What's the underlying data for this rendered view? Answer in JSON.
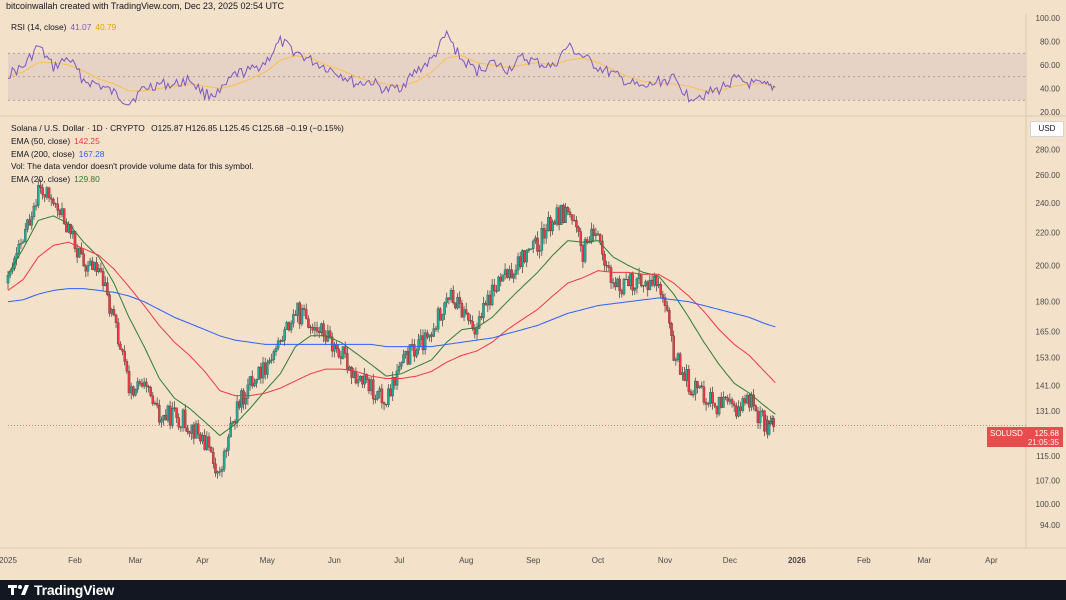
{
  "header": {
    "attribution": "bitcoinwallah created with TradingView.com, Dec 23, 2025 02:54 UTC"
  },
  "footer": {
    "brand": "TradingView"
  },
  "rsi_legend": {
    "label": "RSI (14, close)",
    "rsi_value": "41.07",
    "ma_value": "40.79"
  },
  "legend": {
    "symbol_line": "Solana / U.S. Dollar · 1D · CRYPTO",
    "ohlc": "O125.87 H126.85 L125.45 C125.68 −0.19 (−0.15%)",
    "ema50_label": "EMA (50, close)",
    "ema50_value": "142.25",
    "ema200_label": "EMA (200, close)",
    "ema200_value": "167.28",
    "vol_note": "Vol: The data vendor doesn't provide volume data for this symbol.",
    "ema20_label": "EMA (20, close)",
    "ema20_value": "129.80"
  },
  "currency_button": "USD",
  "price_tag": {
    "symbol": "SOLUSD",
    "price": "125.68",
    "countdown": "21:05:35"
  },
  "colors": {
    "up": "#22ab94",
    "down": "#f23645",
    "ema50": "#f23645",
    "ema200": "#2962ff",
    "ema20": "#2e7d32",
    "rsi": "#7e57c2",
    "rsi_ma": "#f9c14a",
    "rsi_band": "#e2d0c4",
    "background": "#f3e1c9"
  },
  "chart_data": [
    {
      "type": "line",
      "title": "RSI (14, close)",
      "y_ticks": [
        "100.00",
        "80.00",
        "60.00",
        "40.00",
        "20.00"
      ],
      "ylim": [
        20,
        100
      ],
      "band": [
        30,
        70
      ],
      "midline": 50,
      "x": [
        "2025-01-01",
        "2025-01-08",
        "2025-01-15",
        "2025-01-22",
        "2025-01-29",
        "2025-02-05",
        "2025-02-12",
        "2025-02-19",
        "2025-02-26",
        "2025-03-05",
        "2025-03-12",
        "2025-03-19",
        "2025-03-26",
        "2025-04-02",
        "2025-04-09",
        "2025-04-16",
        "2025-04-23",
        "2025-04-30",
        "2025-05-07",
        "2025-05-14",
        "2025-05-21",
        "2025-05-28",
        "2025-06-04",
        "2025-06-11",
        "2025-06-18",
        "2025-06-25",
        "2025-07-02",
        "2025-07-09",
        "2025-07-16",
        "2025-07-23",
        "2025-07-30",
        "2025-08-06",
        "2025-08-13",
        "2025-08-20",
        "2025-08-27",
        "2025-09-03",
        "2025-09-10",
        "2025-09-17",
        "2025-09-24",
        "2025-10-01",
        "2025-10-08",
        "2025-10-15",
        "2025-10-22",
        "2025-10-29",
        "2025-11-05",
        "2025-11-12",
        "2025-11-19",
        "2025-11-26",
        "2025-12-03",
        "2025-12-10",
        "2025-12-17",
        "2025-12-22"
      ],
      "series": [
        {
          "name": "RSI",
          "values": [
            52,
            58,
            76,
            58,
            66,
            47,
            43,
            36,
            28,
            40,
            44,
            43,
            48,
            35,
            36,
            52,
            55,
            62,
            80,
            71,
            64,
            58,
            52,
            44,
            46,
            38,
            42,
            55,
            64,
            86,
            64,
            55,
            62,
            56,
            66,
            62,
            58,
            76,
            67,
            58,
            52,
            45,
            40,
            46,
            48,
            33,
            35,
            39,
            48,
            44,
            42,
            41
          ]
        },
        {
          "name": "MA",
          "values": [
            50,
            54,
            62,
            62,
            60,
            55,
            48,
            44,
            38,
            38,
            40,
            42,
            44,
            42,
            40,
            43,
            48,
            54,
            64,
            68,
            66,
            60,
            56,
            50,
            46,
            44,
            42,
            46,
            54,
            66,
            68,
            62,
            60,
            58,
            60,
            62,
            60,
            64,
            66,
            62,
            56,
            50,
            46,
            44,
            44,
            42,
            38,
            38,
            42,
            44,
            44,
            41
          ]
        }
      ]
    },
    {
      "type": "candlestick",
      "title": "Solana / U.S. Dollar · 1D · CRYPTO",
      "x_ticks": [
        "2025",
        "Feb",
        "Mar",
        "Apr",
        "May",
        "Jun",
        "Jul",
        "Aug",
        "Sep",
        "Oct",
        "Nov",
        "Dec",
        "2026",
        "Feb",
        "Mar",
        "Apr"
      ],
      "y_ticks": [
        "280.00",
        "260.00",
        "240.00",
        "220.00",
        "200.00",
        "180.00",
        "165.00",
        "153.00",
        "141.00",
        "131.00",
        "115.00",
        "107.00",
        "100.00",
        "94.00"
      ],
      "ylim": [
        89,
        300
      ],
      "y_scale": "log",
      "last_price": 125.68,
      "x": [
        "2025-01-01",
        "2025-01-08",
        "2025-01-15",
        "2025-01-22",
        "2025-01-29",
        "2025-02-05",
        "2025-02-12",
        "2025-02-19",
        "2025-02-26",
        "2025-03-05",
        "2025-03-12",
        "2025-03-19",
        "2025-03-26",
        "2025-04-02",
        "2025-04-09",
        "2025-04-16",
        "2025-04-23",
        "2025-04-30",
        "2025-05-07",
        "2025-05-14",
        "2025-05-21",
        "2025-05-28",
        "2025-06-04",
        "2025-06-11",
        "2025-06-18",
        "2025-06-25",
        "2025-07-02",
        "2025-07-09",
        "2025-07-16",
        "2025-07-23",
        "2025-07-30",
        "2025-08-06",
        "2025-08-13",
        "2025-08-20",
        "2025-08-27",
        "2025-09-03",
        "2025-09-10",
        "2025-09-17",
        "2025-09-24",
        "2025-10-01",
        "2025-10-08",
        "2025-10-15",
        "2025-10-22",
        "2025-10-29",
        "2025-11-05",
        "2025-11-12",
        "2025-11-19",
        "2025-11-26",
        "2025-12-03",
        "2025-12-10",
        "2025-12-17",
        "2025-12-22"
      ],
      "close": [
        190,
        215,
        250,
        240,
        222,
        200,
        198,
        170,
        140,
        140,
        128,
        130,
        126,
        120,
        108,
        130,
        142,
        150,
        160,
        175,
        170,
        163,
        155,
        145,
        140,
        134,
        150,
        158,
        162,
        185,
        175,
        167,
        185,
        195,
        205,
        212,
        228,
        235,
        208,
        222,
        185,
        193,
        188,
        192,
        155,
        142,
        138,
        133,
        132,
        136,
        126,
        125.68
      ],
      "series": [
        {
          "name": "EMA (20, close)",
          "values": [
            195,
            210,
            228,
            231,
            226,
            214,
            205,
            190,
            172,
            158,
            144,
            136,
            132,
            127,
            122,
            126,
            132,
            139,
            146,
            158,
            163,
            163,
            160,
            155,
            150,
            145,
            146,
            149,
            152,
            160,
            166,
            167,
            172,
            180,
            188,
            196,
            206,
            215,
            214,
            215,
            205,
            200,
            196,
            194,
            184,
            172,
            160,
            150,
            142,
            138,
            133,
            129.8
          ]
        },
        {
          "name": "EMA (50, close)",
          "values": [
            186,
            192,
            205,
            212,
            214,
            210,
            206,
            198,
            188,
            178,
            168,
            160,
            154,
            147,
            139,
            137,
            137,
            138,
            140,
            143,
            146,
            148,
            148,
            147,
            145,
            144,
            144,
            145,
            147,
            151,
            154,
            156,
            160,
            166,
            171,
            176,
            183,
            190,
            193,
            197,
            196,
            196,
            195,
            195,
            190,
            183,
            175,
            166,
            159,
            154,
            147,
            142.25
          ]
        },
        {
          "name": "EMA (200, close)",
          "values": [
            180,
            181,
            184,
            186,
            187,
            187,
            186,
            185,
            183,
            180,
            176,
            172,
            169,
            166,
            163,
            161,
            160,
            159,
            159,
            159,
            159,
            159,
            159,
            159,
            159,
            158,
            158,
            158,
            158,
            159,
            160,
            161,
            162,
            164,
            166,
            168,
            171,
            174,
            176,
            178,
            179,
            180,
            181,
            182,
            181,
            180,
            178,
            176,
            174,
            172,
            169,
            167.28
          ]
        }
      ]
    }
  ]
}
